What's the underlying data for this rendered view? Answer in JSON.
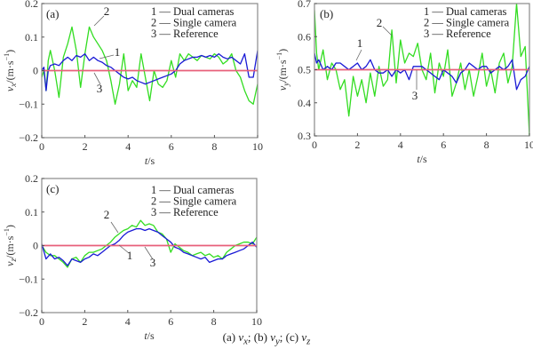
{
  "chart_data": [
    {
      "type": "line",
      "panel": "(a)",
      "xlabel": "t/s",
      "ylabel": "vx/(m·s⁻¹)",
      "xlim": [
        0,
        10
      ],
      "ylim": [
        -0.2,
        0.2
      ],
      "xticks": [
        "0",
        "2",
        "4",
        "6",
        "8",
        "10"
      ],
      "yticks": [
        "-0.2",
        "-0.1",
        "0",
        "0.1",
        "0.2"
      ],
      "grid": false,
      "legend": {
        "placement": "top-right",
        "entries": [
          "1 — Dual cameras",
          "2 — Single camera",
          "3 — Reference"
        ]
      },
      "annotations": [
        "1",
        "2",
        "3"
      ],
      "x": [
        0,
        0.1,
        0.2,
        0.3,
        0.4,
        0.6,
        0.8,
        1.0,
        1.2,
        1.4,
        1.6,
        1.8,
        2.0,
        2.2,
        2.4,
        2.6,
        2.8,
        3.0,
        3.2,
        3.4,
        3.6,
        3.8,
        4.0,
        4.2,
        4.4,
        4.6,
        4.8,
        5.0,
        5.2,
        5.4,
        5.6,
        5.8,
        6.0,
        6.2,
        6.4,
        6.6,
        6.8,
        7.0,
        7.2,
        7.4,
        7.6,
        7.8,
        8.0,
        8.2,
        8.4,
        8.6,
        8.8,
        9.0,
        9.2,
        9.4,
        9.6,
        9.8,
        10.0
      ],
      "series": [
        {
          "name": "1 — Dual cameras",
          "color": "#1a1ad6",
          "values": [
            0.0,
            0.01,
            -0.06,
            0.0,
            0.015,
            0.02,
            0.015,
            0.03,
            0.04,
            0.03,
            0.045,
            0.04,
            0.05,
            0.03,
            0.04,
            0.03,
            0.025,
            0.015,
            0.01,
            0.0,
            -0.01,
            -0.02,
            -0.025,
            -0.02,
            -0.03,
            -0.035,
            -0.04,
            -0.035,
            -0.03,
            -0.025,
            -0.02,
            -0.015,
            -0.01,
            0.0,
            0.02,
            0.03,
            0.035,
            0.04,
            0.04,
            0.045,
            0.04,
            0.045,
            0.04,
            0.05,
            0.04,
            0.035,
            0.04,
            0.03,
            0.02,
            0.05,
            -0.02,
            -0.02,
            0.06
          ]
        },
        {
          "name": "2 — Single camera",
          "color": "#33dd22",
          "values": [
            -0.02,
            0.0,
            -0.06,
            0.03,
            0.06,
            0.0,
            -0.08,
            0.04,
            0.08,
            0.13,
            0.06,
            -0.05,
            0.05,
            0.13,
            0.1,
            0.08,
            0.06,
            0.03,
            -0.03,
            -0.1,
            -0.04,
            0.05,
            -0.06,
            -0.03,
            -0.05,
            0.05,
            -0.02,
            -0.09,
            0.0,
            -0.04,
            -0.05,
            -0.03,
            0.03,
            -0.02,
            0.05,
            0.03,
            0.05,
            0.04,
            0.03,
            0.045,
            0.04,
            0.035,
            0.05,
            0.04,
            0.02,
            0.03,
            0.05,
            0.0,
            -0.02,
            -0.06,
            -0.09,
            -0.1,
            -0.04
          ]
        },
        {
          "name": "3 — Reference",
          "color": "#e8607a",
          "values": [
            0,
            0,
            0,
            0,
            0,
            0,
            0,
            0,
            0,
            0,
            0,
            0,
            0,
            0,
            0,
            0,
            0,
            0,
            0,
            0,
            0,
            0,
            0,
            0,
            0,
            0,
            0,
            0,
            0,
            0,
            0,
            0,
            0,
            0,
            0,
            0,
            0,
            0,
            0,
            0,
            0,
            0,
            0,
            0,
            0,
            0,
            0,
            0,
            0,
            0,
            0,
            0,
            0
          ]
        }
      ]
    },
    {
      "type": "line",
      "panel": "(b)",
      "xlabel": "t/s",
      "ylabel": "vy/(m·s⁻¹)",
      "xlim": [
        0,
        10
      ],
      "ylim": [
        0.3,
        0.7
      ],
      "xticks": [
        "0",
        "2",
        "4",
        "6",
        "8",
        "10"
      ],
      "yticks": [
        "0.3",
        "0.4",
        "0.5",
        "0.6",
        "0.7"
      ],
      "grid": false,
      "legend": {
        "placement": "top-right",
        "entries": [
          "1 — Dual cameras",
          "2 — Single camera",
          "3 — Reference"
        ]
      },
      "annotations": [
        "1",
        "2",
        "3"
      ],
      "x": [
        0,
        0.1,
        0.2,
        0.4,
        0.6,
        0.8,
        1.0,
        1.2,
        1.4,
        1.6,
        1.8,
        2.0,
        2.2,
        2.4,
        2.6,
        2.8,
        3.0,
        3.2,
        3.4,
        3.6,
        3.8,
        4.0,
        4.2,
        4.4,
        4.6,
        4.8,
        5.0,
        5.2,
        5.4,
        5.6,
        5.8,
        6.0,
        6.2,
        6.4,
        6.6,
        6.8,
        7.0,
        7.2,
        7.4,
        7.6,
        7.8,
        8.0,
        8.2,
        8.4,
        8.6,
        8.8,
        9.0,
        9.2,
        9.4,
        9.6,
        9.8,
        10.0
      ],
      "series": [
        {
          "name": "1 — Dual cameras",
          "color": "#1a1ad6",
          "values": [
            0.55,
            0.52,
            0.53,
            0.5,
            0.51,
            0.5,
            0.52,
            0.52,
            0.51,
            0.5,
            0.51,
            0.52,
            0.5,
            0.51,
            0.53,
            0.5,
            0.49,
            0.49,
            0.5,
            0.48,
            0.5,
            0.49,
            0.5,
            0.47,
            0.51,
            0.51,
            0.51,
            0.5,
            0.49,
            0.48,
            0.47,
            0.5,
            0.49,
            0.48,
            0.46,
            0.49,
            0.5,
            0.52,
            0.51,
            0.5,
            0.51,
            0.51,
            0.49,
            0.5,
            0.51,
            0.5,
            0.51,
            0.53,
            0.44,
            0.47,
            0.48,
            0.51
          ]
        },
        {
          "name": "2 — Single camera",
          "color": "#33dd22",
          "values": [
            0.68,
            0.55,
            0.5,
            0.56,
            0.47,
            0.52,
            0.5,
            0.44,
            0.47,
            0.36,
            0.48,
            0.42,
            0.47,
            0.4,
            0.49,
            0.42,
            0.51,
            0.45,
            0.47,
            0.62,
            0.46,
            0.59,
            0.52,
            0.55,
            0.54,
            0.58,
            0.5,
            0.47,
            0.55,
            0.43,
            0.52,
            0.48,
            0.56,
            0.42,
            0.46,
            0.52,
            0.44,
            0.5,
            0.42,
            0.48,
            0.55,
            0.45,
            0.5,
            0.43,
            0.52,
            0.55,
            0.46,
            0.51,
            0.7,
            0.54,
            0.57,
            0.3
          ]
        },
        {
          "name": "3 — Reference",
          "color": "#e8607a",
          "values": [
            0.5,
            0.5,
            0.5,
            0.5,
            0.5,
            0.5,
            0.5,
            0.5,
            0.5,
            0.5,
            0.5,
            0.5,
            0.5,
            0.5,
            0.5,
            0.5,
            0.5,
            0.5,
            0.5,
            0.5,
            0.5,
            0.5,
            0.5,
            0.5,
            0.5,
            0.5,
            0.5,
            0.5,
            0.5,
            0.5,
            0.5,
            0.5,
            0.5,
            0.5,
            0.5,
            0.5,
            0.5,
            0.5,
            0.5,
            0.5,
            0.5,
            0.5,
            0.5,
            0.5,
            0.5,
            0.5,
            0.5,
            0.5,
            0.5,
            0.5,
            0.5,
            0.5
          ]
        }
      ]
    },
    {
      "type": "line",
      "panel": "(c)",
      "xlabel": "t/s",
      "ylabel": "vz/(m·s⁻¹)",
      "xlim": [
        0,
        10
      ],
      "ylim": [
        -0.2,
        0.2
      ],
      "xticks": [
        "0",
        "2",
        "4",
        "6",
        "8",
        "10"
      ],
      "yticks": [
        "-0.2",
        "-0.1",
        "0",
        "0.1",
        "0.2"
      ],
      "grid": false,
      "legend": {
        "placement": "top-right",
        "entries": [
          "1 — Dual cameras",
          "2 — Single camera",
          "3 — Reference"
        ]
      },
      "annotations": [
        "1",
        "2",
        "3"
      ],
      "x": [
        0,
        0.2,
        0.4,
        0.6,
        0.8,
        1.0,
        1.2,
        1.4,
        1.6,
        1.8,
        2.0,
        2.2,
        2.4,
        2.6,
        2.8,
        3.0,
        3.2,
        3.4,
        3.6,
        3.8,
        4.0,
        4.2,
        4.4,
        4.6,
        4.8,
        5.0,
        5.2,
        5.4,
        5.6,
        5.8,
        6.0,
        6.2,
        6.4,
        6.6,
        6.8,
        7.0,
        7.2,
        7.4,
        7.6,
        7.8,
        8.0,
        8.2,
        8.4,
        8.6,
        8.8,
        9.0,
        9.2,
        9.4,
        9.6,
        9.8,
        10.0
      ],
      "series": [
        {
          "name": "1 — Dual cameras",
          "color": "#1a1ad6",
          "values": [
            0.005,
            -0.04,
            -0.025,
            -0.04,
            -0.035,
            -0.045,
            -0.06,
            -0.04,
            -0.045,
            -0.05,
            -0.04,
            -0.035,
            -0.025,
            -0.03,
            -0.02,
            -0.01,
            0.0,
            0.005,
            0.015,
            0.03,
            0.04,
            0.045,
            0.05,
            0.05,
            0.045,
            0.05,
            0.045,
            0.04,
            0.03,
            0.02,
            0.01,
            -0.005,
            -0.01,
            -0.02,
            -0.025,
            -0.03,
            -0.035,
            -0.04,
            -0.035,
            -0.05,
            -0.045,
            -0.04,
            -0.04,
            -0.03,
            -0.025,
            -0.02,
            -0.015,
            -0.01,
            0.0,
            0.01,
            -0.005
          ]
        },
        {
          "name": "2 — Single camera",
          "color": "#33dd22",
          "values": [
            0.0,
            -0.02,
            -0.03,
            -0.03,
            -0.04,
            -0.05,
            -0.065,
            -0.04,
            -0.035,
            -0.05,
            -0.03,
            -0.02,
            -0.02,
            -0.015,
            -0.01,
            0.0,
            0.01,
            0.025,
            0.035,
            0.045,
            0.05,
            0.06,
            0.055,
            0.075,
            0.06,
            0.065,
            0.06,
            0.04,
            0.035,
            0.02,
            -0.02,
            0.005,
            -0.005,
            -0.015,
            -0.02,
            -0.03,
            -0.025,
            -0.02,
            -0.03,
            -0.025,
            -0.035,
            -0.03,
            -0.04,
            -0.02,
            -0.01,
            0.0,
            0.005,
            0.01,
            0.01,
            0.005,
            0.025
          ]
        },
        {
          "name": "3 — Reference",
          "color": "#e8607a",
          "values": [
            0,
            0,
            0,
            0,
            0,
            0,
            0,
            0,
            0,
            0,
            0,
            0,
            0,
            0,
            0,
            0,
            0,
            0,
            0,
            0,
            0,
            0,
            0,
            0,
            0,
            0,
            0,
            0,
            0,
            0,
            0,
            0,
            0,
            0,
            0,
            0,
            0,
            0,
            0,
            0,
            0,
            0,
            0,
            0,
            0,
            0,
            0,
            0,
            0,
            0,
            0
          ]
        }
      ]
    }
  ],
  "caption": {
    "a_prefix": "(a) ",
    "a_var": "v",
    "a_sub": "x",
    "sep1": "; (b) ",
    "b_var": "v",
    "b_sub": "y",
    "sep2": "; (c) ",
    "c_var": "v",
    "c_sub": "z"
  },
  "axis_text": {
    "t_var": "t",
    "t_unit": "/s",
    "ylabel_unit": "/(m·s",
    "ylabel_exp": "−1",
    "ylabel_close": ")",
    "v": "v",
    "sub": [
      "x",
      "y",
      "z"
    ]
  }
}
